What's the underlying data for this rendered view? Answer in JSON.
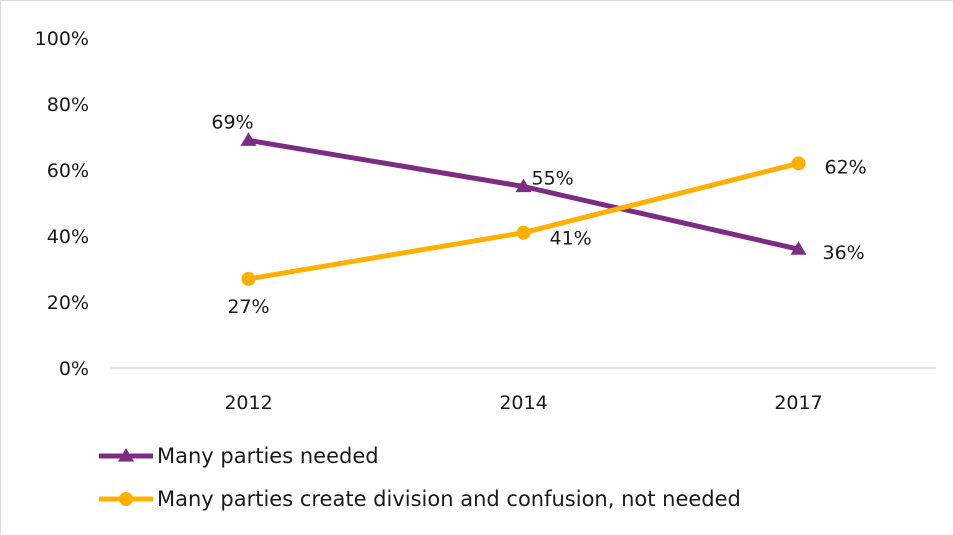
{
  "chart_data": {
    "type": "line",
    "categories": [
      "2012",
      "2014",
      "2017"
    ],
    "ylim": [
      0,
      100
    ],
    "y_ticks": [
      0,
      20,
      40,
      60,
      80,
      100
    ],
    "y_tick_labels": [
      "0%",
      "20%",
      "40%",
      "60%",
      "80%",
      "100%"
    ],
    "grid": false,
    "legend_position": "bottom-left",
    "title": "",
    "xlabel": "",
    "ylabel": "",
    "series": [
      {
        "name": "Many parties needed",
        "values": [
          69,
          55,
          36
        ],
        "labels": [
          "69%",
          "55%",
          "36%"
        ],
        "color": "#7b2d84",
        "marker": "triangle"
      },
      {
        "name": "Many parties create division and confusion, not needed",
        "values": [
          27,
          41,
          62
        ],
        "labels": [
          "27%",
          "41%",
          "62%"
        ],
        "color": "#ffb000",
        "marker": "circle"
      }
    ]
  }
}
